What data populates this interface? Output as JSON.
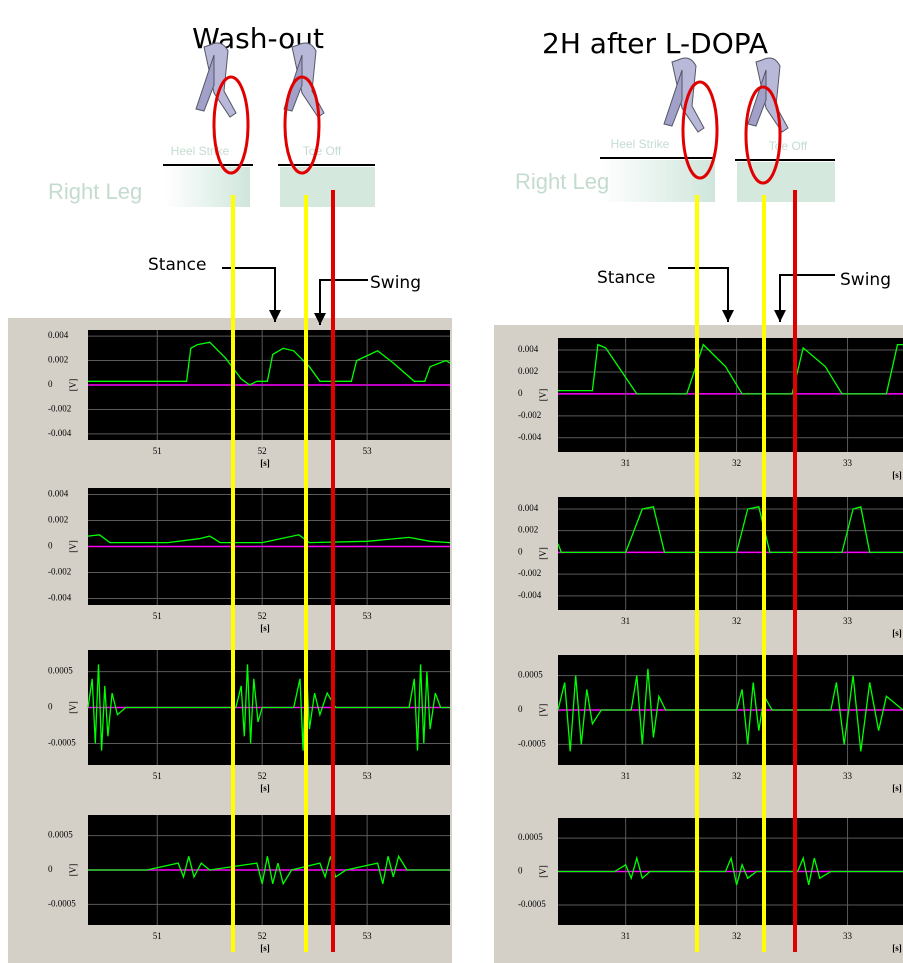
{
  "panels": [
    {
      "title": "Wash-out",
      "leg": "Right Leg",
      "heel_strike": "Heel Strike",
      "toe_off": "Toe Off",
      "stance": "Stance",
      "swing": "Swing"
    },
    {
      "title": "2H after L-DOPA",
      "leg": "Right Leg",
      "heel_strike": "Heel Strike",
      "toe_off": "Toe Off",
      "stance": "Stance",
      "swing": "Swing"
    }
  ],
  "chart_data": [
    {
      "type": "line",
      "background": "#000000",
      "zero_line_color": "#ff00ff",
      "grid": true,
      "xlabel": "[s]",
      "ylabel": "[V]",
      "xlim": [
        50.34,
        53.79
      ],
      "xticks": [
        51,
        52,
        53
      ],
      "ylim": [
        -0.0045,
        0.0045
      ],
      "yticks": [
        0.004,
        0.002,
        0,
        -0.002,
        -0.004
      ],
      "x": [
        50.34,
        51.28,
        51.32,
        51.38,
        51.5,
        51.65,
        51.8,
        51.88,
        51.95,
        52.05,
        52.1,
        52.2,
        52.3,
        52.45,
        52.55,
        52.85,
        52.9,
        53.1,
        53.25,
        53.45,
        53.55,
        53.6,
        53.75,
        53.79
      ],
      "series": [
        {
          "color": "#00ff00",
          "values": [
            0.0003,
            0.0003,
            0.003,
            0.0033,
            0.0035,
            0.0022,
            0.0005,
            0,
            0.0003,
            0.0003,
            0.0025,
            0.003,
            0.0028,
            0.0015,
            0.0003,
            0.0003,
            0.002,
            0.0028,
            0.0018,
            0.0003,
            0.0003,
            0.0015,
            0.002,
            0.0018
          ]
        }
      ]
    },
    {
      "type": "line",
      "background": "#000000",
      "zero_line_color": "#ff00ff",
      "grid": true,
      "xlabel": "[s]",
      "ylabel": "[V]",
      "xlim": [
        50.34,
        53.79
      ],
      "xticks": [
        51,
        52,
        53
      ],
      "ylim": [
        -0.0045,
        0.0045
      ],
      "yticks": [
        0.004,
        0.002,
        0,
        -0.002,
        -0.004
      ],
      "x": [
        50.34,
        50.45,
        50.55,
        51.1,
        51.4,
        51.5,
        51.6,
        52.0,
        52.35,
        52.45,
        53.0,
        53.4,
        53.6,
        53.79
      ],
      "series": [
        {
          "color": "#00ff00",
          "values": [
            0.0008,
            0.0009,
            0.0003,
            0.0003,
            0.0006,
            0.0008,
            0.0003,
            0.0003,
            0.0009,
            0.0003,
            0.0004,
            0.0007,
            0.0004,
            0.0003
          ]
        }
      ]
    },
    {
      "type": "line",
      "background": "#000000",
      "zero_line_color": "#ff00ff",
      "grid": true,
      "xlabel": "[s]",
      "ylabel": "[V]",
      "xlim": [
        50.34,
        53.79
      ],
      "xticks": [
        51,
        52,
        53
      ],
      "ylim": [
        -0.0008,
        0.0008
      ],
      "yticks": [
        0.0005,
        0,
        -0.0005
      ],
      "x": [
        50.34,
        50.38,
        50.41,
        50.44,
        50.47,
        50.5,
        50.53,
        50.57,
        50.62,
        50.7,
        51.75,
        51.8,
        51.83,
        51.86,
        51.89,
        51.92,
        51.96,
        52.0,
        52.3,
        52.36,
        52.39,
        52.42,
        52.45,
        52.5,
        52.55,
        52.62,
        52.7,
        53.4,
        53.45,
        53.48,
        53.51,
        53.54,
        53.57,
        53.6,
        53.65,
        53.7,
        53.79
      ],
      "series": [
        {
          "color": "#00ff00",
          "values": [
            0,
            0.0004,
            -0.0005,
            0.0006,
            -0.0006,
            0.0003,
            -0.0004,
            0.0002,
            -0.0001,
            0,
            0,
            0.0003,
            -0.0004,
            0.0006,
            -0.0005,
            0.0004,
            -0.0002,
            0,
            0,
            0.0004,
            -0.0006,
            0.0006,
            -0.0003,
            0.0002,
            -0.0001,
            0.0002,
            0,
            0,
            0.0004,
            -0.0006,
            0.0006,
            -0.0005,
            0.0005,
            -0.0003,
            0.0002,
            0,
            0
          ]
        }
      ]
    },
    {
      "type": "line",
      "background": "#000000",
      "zero_line_color": "#ff00ff",
      "grid": true,
      "xlabel": "[s]",
      "ylabel": "[V]",
      "xlim": [
        50.34,
        53.79
      ],
      "xticks": [
        51,
        52,
        53
      ],
      "ylim": [
        -0.0008,
        0.0008
      ],
      "yticks": [
        0.0005,
        0,
        -0.0005
      ],
      "x": [
        50.34,
        50.9,
        51.2,
        51.25,
        51.3,
        51.35,
        51.42,
        51.5,
        51.95,
        52.0,
        52.05,
        52.1,
        52.15,
        52.2,
        52.28,
        52.55,
        52.6,
        52.65,
        52.7,
        52.8,
        53.1,
        53.15,
        53.2,
        53.25,
        53.3,
        53.38,
        53.79
      ],
      "series": [
        {
          "color": "#00ff00",
          "values": [
            0,
            0,
            0.0001,
            -0.0001,
            0.0002,
            -0.0001,
            0.0001,
            0,
            0.0001,
            -0.0002,
            0.0002,
            -0.0002,
            0.0001,
            -0.0002,
            0,
            0.0001,
            -0.0001,
            0.0002,
            -0.0001,
            0,
            0.0001,
            -0.0002,
            0.0002,
            -0.0001,
            0.0002,
            0,
            0
          ]
        }
      ]
    },
    {
      "type": "line",
      "background": "#000000",
      "zero_line_color": "#ff00ff",
      "grid": true,
      "xlabel": "[s]",
      "ylabel": "[V]",
      "xlim": [
        30.39,
        33.5
      ],
      "xticks": [
        31,
        32,
        33
      ],
      "ylim": [
        -0.0053,
        0.0051
      ],
      "yticks": [
        0.004,
        0.002,
        0,
        -0.002,
        -0.004
      ],
      "x": [
        30.39,
        30.7,
        30.75,
        30.82,
        31.0,
        31.1,
        31.55,
        31.7,
        31.9,
        32.05,
        32.5,
        32.6,
        32.8,
        32.95,
        33.35,
        33.45,
        33.5
      ],
      "series": [
        {
          "color": "#00ff00",
          "values": [
            0.0003,
            0.0003,
            0.0045,
            0.0042,
            0.0015,
            0,
            0,
            0.0045,
            0.0025,
            0,
            0,
            0.0042,
            0.0025,
            0,
            0,
            0.0045,
            0.0045
          ]
        }
      ]
    },
    {
      "type": "line",
      "background": "#000000",
      "zero_line_color": "#ff00ff",
      "grid": true,
      "xlabel": "[s]",
      "ylabel": "[V]",
      "xlim": [
        30.39,
        33.5
      ],
      "xticks": [
        31,
        32,
        33
      ],
      "ylim": [
        -0.0053,
        0.0051
      ],
      "yticks": [
        0.004,
        0.002,
        0,
        -0.002,
        -0.004
      ],
      "x": [
        30.39,
        30.42,
        31.0,
        31.15,
        31.25,
        31.35,
        32.0,
        32.1,
        32.2,
        32.3,
        32.95,
        33.05,
        33.12,
        33.2,
        33.5
      ],
      "series": [
        {
          "color": "#00ff00",
          "values": [
            0.0008,
            0,
            0,
            0.004,
            0.0042,
            0,
            0,
            0.004,
            0.0042,
            0,
            0,
            0.004,
            0.0042,
            0,
            0
          ]
        }
      ]
    },
    {
      "type": "line",
      "background": "#000000",
      "zero_line_color": "#ff00ff",
      "grid": true,
      "xlabel": "[s]",
      "ylabel": "[V]",
      "xlim": [
        30.39,
        33.5
      ],
      "xticks": [
        31,
        32,
        33
      ],
      "ylim": [
        -0.0008,
        0.0008
      ],
      "yticks": [
        0.0005,
        0,
        -0.0005
      ],
      "x": [
        30.39,
        30.45,
        30.5,
        30.55,
        30.6,
        30.65,
        30.7,
        30.78,
        31.05,
        31.1,
        31.15,
        31.2,
        31.25,
        31.3,
        31.36,
        32.0,
        32.05,
        32.1,
        32.15,
        32.2,
        32.25,
        32.32,
        32.85,
        32.9,
        32.97,
        33.05,
        33.12,
        33.2,
        33.28,
        33.35,
        33.5
      ],
      "series": [
        {
          "color": "#00ff00",
          "values": [
            0,
            0.0004,
            -0.0006,
            0.0005,
            -0.0005,
            0.0003,
            -0.0002,
            0,
            0,
            0.0005,
            -0.0005,
            0.0006,
            -0.0004,
            0.0002,
            0,
            0,
            0.0003,
            -0.0005,
            0.0004,
            -0.0003,
            0.0002,
            0,
            0,
            0.0004,
            -0.0005,
            0.0005,
            -0.0006,
            0.0004,
            -0.0003,
            0.0002,
            0
          ]
        }
      ]
    },
    {
      "type": "line",
      "background": "#000000",
      "zero_line_color": "#ff00ff",
      "grid": true,
      "xlabel": "[s]",
      "ylabel": "[V]",
      "xlim": [
        30.39,
        33.5
      ],
      "xticks": [
        31,
        32,
        33
      ],
      "ylim": [
        -0.0008,
        0.0008
      ],
      "yticks": [
        0.0005,
        0,
        -0.0005
      ],
      "x": [
        30.39,
        30.9,
        31.0,
        31.05,
        31.1,
        31.15,
        31.22,
        31.9,
        31.95,
        32.0,
        32.05,
        32.1,
        32.18,
        32.55,
        32.6,
        32.65,
        32.7,
        32.75,
        32.85,
        33.5
      ],
      "series": [
        {
          "color": "#00ff00",
          "values": [
            0,
            0,
            0.0001,
            -0.0001,
            0.0002,
            -0.0001,
            0,
            0,
            0.0002,
            -0.0002,
            0.0001,
            -0.0001,
            0,
            0,
            0.0002,
            -0.0002,
            0.0002,
            -0.0001,
            0,
            0
          ]
        }
      ]
    }
  ]
}
